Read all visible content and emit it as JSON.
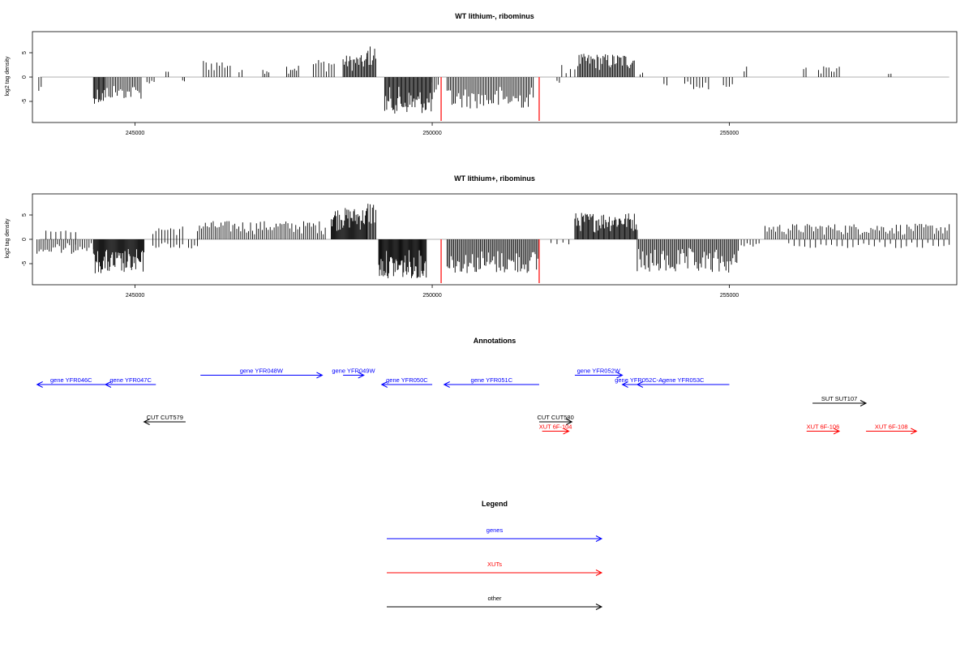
{
  "colors": {
    "gene": "#0000ff",
    "xut": "#ff0000",
    "other": "#000000",
    "axis": "#000000",
    "baseline": "#999999",
    "redbar": "#ff0000"
  },
  "chart_data": [
    {
      "type": "bar",
      "title": "WT lithium-, ribominus",
      "ylabel": "log2 tag density",
      "xlim": [
        243300,
        258800
      ],
      "ylim": [
        -9,
        9
      ],
      "x_ticks": [
        245000,
        250000,
        255000
      ],
      "y_ticks": [
        -5,
        0,
        5
      ],
      "red_bars": [
        {
          "x": 250150,
          "y": -9
        },
        {
          "x": 251800,
          "y": -9
        }
      ],
      "segments": [
        {
          "x0": 243380,
          "x1": 243420,
          "dir": -1,
          "amp": 3.5,
          "density": 1
        },
        {
          "x0": 244300,
          "x1": 244500,
          "dir": -1,
          "amp": 5.5,
          "density": 6
        },
        {
          "x0": 244500,
          "x1": 245100,
          "dir": -1,
          "amp": 4.5,
          "density": 10
        },
        {
          "x0": 245200,
          "x1": 245320,
          "dir": -1,
          "amp": 1.5,
          "density": 2
        },
        {
          "x0": 245520,
          "x1": 245560,
          "dir": 1,
          "amp": 1.2,
          "density": 1
        },
        {
          "x0": 245800,
          "x1": 245830,
          "dir": -1,
          "amp": 1.2,
          "density": 1
        },
        {
          "x0": 246150,
          "x1": 246600,
          "dir": 1,
          "amp": 3.6,
          "density": 5
        },
        {
          "x0": 246750,
          "x1": 246800,
          "dir": 1,
          "amp": 1.5,
          "density": 1
        },
        {
          "x0": 247150,
          "x1": 247250,
          "dir": 1,
          "amp": 2.2,
          "density": 2
        },
        {
          "x0": 247550,
          "x1": 247750,
          "dir": 1,
          "amp": 2.6,
          "density": 3
        },
        {
          "x0": 248000,
          "x1": 248350,
          "dir": 1,
          "amp": 3.8,
          "density": 4
        },
        {
          "x0": 248500,
          "x1": 248900,
          "dir": 1,
          "amp": 4.5,
          "density": 10
        },
        {
          "x0": 248900,
          "x1": 249050,
          "dir": 1,
          "amp": 6.5,
          "density": 4
        },
        {
          "x0": 249200,
          "x1": 250000,
          "dir": -1,
          "amp": 7.5,
          "density": 22
        },
        {
          "x0": 250000,
          "x1": 250100,
          "dir": -1,
          "amp": 4,
          "density": 2
        },
        {
          "x0": 250250,
          "x1": 251700,
          "dir": -1,
          "amp": 6.5,
          "density": 24
        },
        {
          "x0": 252100,
          "x1": 252140,
          "dir": -1,
          "amp": 1.2,
          "density": 1
        },
        {
          "x0": 252180,
          "x1": 252400,
          "dir": 1,
          "amp": 2.5,
          "density": 2
        },
        {
          "x0": 252450,
          "x1": 253400,
          "dir": 1,
          "amp": 4.8,
          "density": 22
        },
        {
          "x0": 253500,
          "x1": 253540,
          "dir": 1,
          "amp": 1.5,
          "density": 1
        },
        {
          "x0": 253900,
          "x1": 253950,
          "dir": -1,
          "amp": 1.8,
          "density": 1
        },
        {
          "x0": 254250,
          "x1": 254650,
          "dir": -1,
          "amp": 2.8,
          "density": 4
        },
        {
          "x0": 254900,
          "x1": 255050,
          "dir": -1,
          "amp": 2.5,
          "density": 2
        },
        {
          "x0": 255250,
          "x1": 255290,
          "dir": 1,
          "amp": 2.8,
          "density": 1
        },
        {
          "x0": 256250,
          "x1": 256290,
          "dir": 1,
          "amp": 2.2,
          "density": 1
        },
        {
          "x0": 256500,
          "x1": 256850,
          "dir": 1,
          "amp": 2.2,
          "density": 4
        },
        {
          "x0": 257680,
          "x1": 257720,
          "dir": 1,
          "amp": 1,
          "density": 1
        }
      ]
    },
    {
      "type": "bar",
      "title": "WT lithium+, ribominus",
      "ylabel": "log2 tag density",
      "xlim": [
        243300,
        258800
      ],
      "ylim": [
        -9,
        9
      ],
      "x_ticks": [
        245000,
        250000,
        255000
      ],
      "y_ticks": [
        -5,
        0,
        5
      ],
      "red_bars": [
        {
          "x": 250150,
          "y": -9
        },
        {
          "x": 251800,
          "y": -9
        }
      ],
      "segments": [
        {
          "x0": 243350,
          "x1": 244000,
          "dir": -1,
          "amp": 3,
          "density": 9
        },
        {
          "x0": 243500,
          "x1": 244000,
          "dir": 1,
          "amp": 1.8,
          "density": 3
        },
        {
          "x0": 244000,
          "x1": 244300,
          "dir": -1,
          "amp": 2.5,
          "density": 4
        },
        {
          "x0": 244300,
          "x1": 245150,
          "dir": -1,
          "amp": 7,
          "density": 28
        },
        {
          "x0": 245300,
          "x1": 245800,
          "dir": -1,
          "amp": 1.8,
          "density": 5
        },
        {
          "x0": 245300,
          "x1": 245800,
          "dir": 1,
          "amp": 2.8,
          "density": 5
        },
        {
          "x0": 245900,
          "x1": 246050,
          "dir": -1,
          "amp": 2,
          "density": 2
        },
        {
          "x0": 246050,
          "x1": 248200,
          "dir": 1,
          "amp": 3.8,
          "density": 30
        },
        {
          "x0": 248300,
          "x1": 248900,
          "dir": 1,
          "amp": 6.5,
          "density": 20
        },
        {
          "x0": 248900,
          "x1": 249050,
          "dir": 1,
          "amp": 8,
          "density": 4
        },
        {
          "x0": 249100,
          "x1": 249900,
          "dir": -1,
          "amp": 8,
          "density": 28
        },
        {
          "x0": 250250,
          "x1": 251800,
          "dir": -1,
          "amp": 7,
          "density": 32
        },
        {
          "x0": 252000,
          "x1": 252300,
          "dir": -1,
          "amp": 1.2,
          "density": 2
        },
        {
          "x0": 252400,
          "x1": 253450,
          "dir": 1,
          "amp": 5.5,
          "density": 30
        },
        {
          "x0": 253450,
          "x1": 255150,
          "dir": -1,
          "amp": 7,
          "density": 34
        },
        {
          "x0": 255200,
          "x1": 255500,
          "dir": -1,
          "amp": 1.5,
          "density": 3
        },
        {
          "x0": 255600,
          "x1": 258700,
          "dir": 1,
          "amp": 3.2,
          "density": 40
        },
        {
          "x0": 256000,
          "x1": 258700,
          "dir": -1,
          "amp": 1.8,
          "density": 14
        }
      ]
    }
  ],
  "annotations": {
    "title": "Annotations",
    "items": [
      {
        "name": "gene YFR046C",
        "kind": "gene",
        "strand": "-",
        "start": 243350,
        "end": 244500,
        "row": 2
      },
      {
        "name": "gene YFR047C",
        "kind": "gene",
        "strand": "-",
        "start": 244500,
        "end": 245350,
        "row": 2
      },
      {
        "name": "gene YFR048W",
        "kind": "gene",
        "strand": "+",
        "start": 246100,
        "end": 248150,
        "row": 1
      },
      {
        "name": "gene YFR049W",
        "kind": "gene",
        "strand": "+",
        "start": 248500,
        "end": 248850,
        "row": 1
      },
      {
        "name": "gene YFR050C",
        "kind": "gene",
        "strand": "-",
        "start": 249150,
        "end": 250000,
        "row": 2
      },
      {
        "name": "gene YFR051C",
        "kind": "gene",
        "strand": "-",
        "start": 250200,
        "end": 251800,
        "row": 2
      },
      {
        "name": "gene YFR052W",
        "kind": "gene",
        "strand": "+",
        "start": 252400,
        "end": 253200,
        "row": 1
      },
      {
        "name": "gene YFR052C-A",
        "kind": "gene",
        "strand": "-",
        "start": 253200,
        "end": 253750,
        "row": 2
      },
      {
        "name": "gene YFR053C",
        "kind": "gene",
        "strand": "-",
        "start": 253450,
        "end": 255000,
        "row": 2
      },
      {
        "name": "SUT SUT107",
        "kind": "other",
        "strand": "+",
        "start": 256400,
        "end": 257300,
        "row": 4
      },
      {
        "name": "CUT CUT579",
        "kind": "other",
        "strand": "-",
        "start": 245150,
        "end": 245850,
        "row": 6
      },
      {
        "name": "CUT CUT580",
        "kind": "other",
        "strand": "+",
        "start": 251800,
        "end": 252350,
        "row": 6
      },
      {
        "name": "XUT 6F-104",
        "kind": "xut",
        "strand": "+",
        "start": 251850,
        "end": 252300,
        "row": 7
      },
      {
        "name": "XUT 6F-106",
        "kind": "xut",
        "strand": "+",
        "start": 256300,
        "end": 256850,
        "row": 7
      },
      {
        "name": "XUT 6F-108",
        "kind": "xut",
        "strand": "+",
        "start": 257300,
        "end": 258150,
        "row": 7
      }
    ]
  },
  "legend": {
    "title": "Legend",
    "items": [
      {
        "label": "genes",
        "kind": "gene"
      },
      {
        "label": "XUTs",
        "kind": "xut"
      },
      {
        "label": "other",
        "kind": "other"
      }
    ]
  }
}
